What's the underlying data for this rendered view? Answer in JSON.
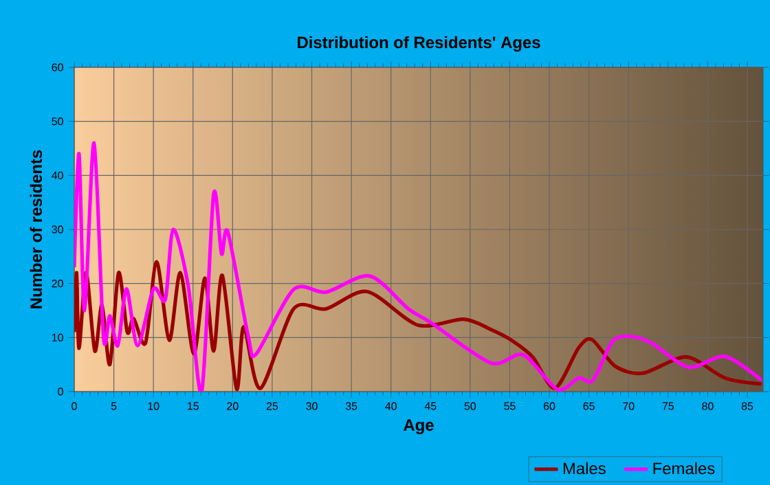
{
  "chart_data": {
    "type": "line",
    "title": "Distribution of Residents' Ages",
    "xlabel": "Age",
    "ylabel": "Number of residents",
    "xlim": [
      0,
      87
    ],
    "xticks": [
      0,
      5,
      10,
      15,
      20,
      25,
      30,
      35,
      40,
      45,
      50,
      55,
      60,
      65,
      70,
      75,
      80,
      85
    ],
    "ylim": [
      0,
      60
    ],
    "yticks": [
      0,
      10,
      20,
      30,
      40,
      50,
      60
    ],
    "grid": true,
    "legend": "bottom",
    "marker": "none",
    "series": [
      {
        "name": "Males",
        "color": "#990000",
        "x": [
          0,
          0.3,
          0.6,
          1.5,
          2.6,
          3.5,
          4.5,
          5.6,
          6.7,
          7.5,
          9,
          10.4,
          12,
          13.4,
          15.1,
          16.5,
          17.6,
          18.7,
          20.5,
          21.4,
          23.5,
          27.7,
          31.8,
          37,
          43.4,
          49.2,
          52.6,
          55,
          57.9,
          60.7,
          63.7,
          65.4,
          68.3,
          71.8,
          77.3,
          82.2,
          86.8
        ],
        "values": [
          11,
          22,
          8,
          22,
          7.5,
          16,
          5,
          22,
          11,
          13.5,
          9,
          24,
          9.5,
          22,
          7,
          21,
          7.5,
          21.5,
          0.5,
          12,
          0.6,
          15.3,
          15.3,
          18.5,
          12.3,
          13.4,
          11.5,
          9.7,
          6.4,
          0.6,
          8.1,
          9.6,
          4.7,
          3.4,
          6.4,
          2.5,
          1.4
        ]
      },
      {
        "name": "Females",
        "color": "#ff00ff",
        "x": [
          0,
          0.6,
          1.3,
          2.5,
          3.7,
          4.5,
          5.5,
          6.6,
          8,
          10,
          11.5,
          12.5,
          14.4,
          16.1,
          17.6,
          18.6,
          19.4,
          22,
          23,
          27.7,
          31.8,
          37.3,
          42.2,
          45.1,
          52.6,
          56.7,
          61,
          63.7,
          65.5,
          68,
          70.3,
          73,
          77.6,
          82.2,
          86.8
        ],
        "values": [
          23,
          44,
          15,
          46,
          10,
          14,
          8.5,
          19,
          8.5,
          19,
          17,
          30,
          19.5,
          0,
          36.5,
          25.5,
          29.5,
          10,
          7,
          18.9,
          18.4,
          21.4,
          15.3,
          12.7,
          5.3,
          6.8,
          0.4,
          2.5,
          2.1,
          9.3,
          10.2,
          8.9,
          4.5,
          6.5,
          2.1
        ]
      }
    ]
  }
}
